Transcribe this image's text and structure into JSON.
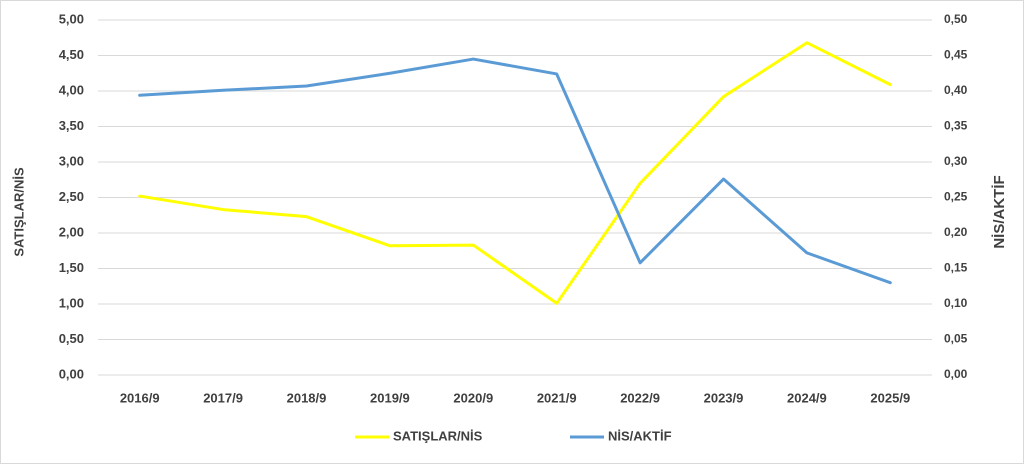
{
  "chart_data": {
    "type": "line",
    "categories": [
      "2016/9",
      "2017/9",
      "2018/9",
      "2019/9",
      "2020/9",
      "2021/9",
      "2022/9",
      "2023/9",
      "2024/9",
      "2025/9"
    ],
    "y_label": "SATIŞLAR/NİS",
    "y2_label": "NİS/AKTİF",
    "series": [
      {
        "name": "SATIŞLAR/NİS",
        "color": "#ffff00",
        "values": [
          2.52,
          2.33,
          2.23,
          1.82,
          1.83,
          1.01,
          2.7,
          3.92,
          4.68,
          4.09
        ]
      },
      {
        "name": "NİS/AKTİF",
        "color": "#5b9bd5",
        "axis": "y2",
        "values": [
          0.394,
          0.401,
          0.407,
          0.425,
          0.445,
          0.424,
          0.158,
          0.276,
          0.172,
          0.13
        ]
      }
    ],
    "ylim": [
      0,
      5
    ],
    "yticks": [
      {
        "value": 0,
        "label": "0,00"
      },
      {
        "value": 0.5,
        "label": "0,50"
      },
      {
        "value": 1,
        "label": "1,00"
      },
      {
        "value": 1.5,
        "label": "1,50"
      },
      {
        "value": 2,
        "label": "2,00"
      },
      {
        "value": 2.5,
        "label": "2,50"
      },
      {
        "value": 3,
        "label": "3,00"
      },
      {
        "value": 3.5,
        "label": "3,50"
      },
      {
        "value": 4,
        "label": "4,00"
      },
      {
        "value": 4.5,
        "label": "4,50"
      },
      {
        "value": 5,
        "label": "5,00"
      }
    ],
    "y2lim": [
      0,
      0.5
    ],
    "y2ticks": [
      {
        "value": 0,
        "label": "0,00"
      },
      {
        "value": 0.05,
        "label": "0,05"
      },
      {
        "value": 0.1,
        "label": "0,10"
      },
      {
        "value": 0.15,
        "label": "0,15"
      },
      {
        "value": 0.2,
        "label": "0,20"
      },
      {
        "value": 0.25,
        "label": "0,25"
      },
      {
        "value": 0.3,
        "label": "0,30"
      },
      {
        "value": 0.35,
        "label": "0,35"
      },
      {
        "value": 0.4,
        "label": "0,40"
      },
      {
        "value": 0.45,
        "label": "0,45"
      },
      {
        "value": 0.5,
        "label": "0,50"
      }
    ],
    "grid": true
  }
}
